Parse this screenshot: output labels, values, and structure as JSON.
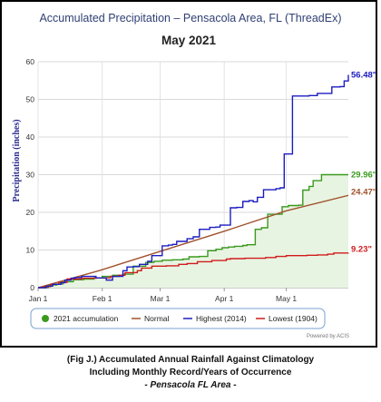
{
  "caption": {
    "line1": "(Fig J.) Accumulated Annual Rainfall Against  Climatology",
    "line2": "Including Monthly Record/Years of Occurrence",
    "line3": "- Pensacola FL Area -"
  },
  "chart_data": {
    "type": "line",
    "title": "Accumulated Precipitation – Pensacola Area, FL (ThreadEx)",
    "subtitle": "May 2021",
    "ylabel": "Precipitation (inches)",
    "xlabel": "",
    "credit": "Powered by ACIS",
    "ylim": [
      0,
      60
    ],
    "yticks": [
      0,
      10,
      20,
      30,
      40,
      50,
      60
    ],
    "xlim": [
      0,
      150
    ],
    "xticks": [
      {
        "day": 0,
        "label": "Jan 1"
      },
      {
        "day": 31,
        "label": "Feb 1"
      },
      {
        "day": 59,
        "label": "Mar 1"
      },
      {
        "day": 90,
        "label": "Apr 1"
      },
      {
        "day": 120,
        "label": "May 1"
      }
    ],
    "grid": true,
    "legend_position": "bottom",
    "series": [
      {
        "name": "2021 accumulation",
        "color": "#3a9a1f",
        "fill": "#e8f4e2",
        "style": "step-area",
        "marker": "circle",
        "x": [
          0,
          5,
          9,
          12,
          17,
          22,
          27,
          31,
          36,
          41,
          46,
          52,
          56,
          60,
          65,
          70,
          73,
          78,
          82,
          86,
          89,
          92,
          95,
          99,
          101,
          105,
          108,
          111,
          118,
          121,
          126,
          128,
          131,
          133,
          137,
          150
        ],
        "y": [
          0,
          0.7,
          1.0,
          1.6,
          2.1,
          2.3,
          2.6,
          3.0,
          3.3,
          3.6,
          5.7,
          6.7,
          7.0,
          7.3,
          7.4,
          7.6,
          8.2,
          8.3,
          9.8,
          10.2,
          10.6,
          10.8,
          11.0,
          11.2,
          11.4,
          15.5,
          15.9,
          19.5,
          21.5,
          21.8,
          21.9,
          25.9,
          26.9,
          28.4,
          30.0,
          30.0
        ],
        "end_label": "29.96\""
      },
      {
        "name": "Normal",
        "color": "#a0522d",
        "style": "line",
        "marker": "line",
        "x": [
          0,
          30,
          60,
          90,
          120,
          150
        ],
        "y": [
          0,
          4.6,
          9.8,
          15.0,
          20.4,
          24.5
        ],
        "end_label": "24.47\""
      },
      {
        "name": "Highest (2014)",
        "color": "#1c1cc0",
        "style": "step",
        "marker": "line",
        "x": [
          0,
          4,
          7,
          11,
          13,
          16,
          18,
          21,
          23,
          28,
          33,
          36,
          41,
          43,
          46,
          49,
          53,
          55,
          60,
          63,
          65,
          67,
          72,
          75,
          78,
          83,
          86,
          88,
          93,
          96,
          99,
          102,
          104,
          106,
          109,
          115,
          117,
          119,
          123,
          131,
          135,
          142,
          146,
          148,
          150
        ],
        "y": [
          0,
          0.4,
          0.9,
          1.3,
          2.0,
          2.5,
          2.7,
          3.0,
          3.0,
          2.6,
          2.0,
          3.0,
          4.5,
          5.5,
          5.6,
          6.2,
          7.0,
          8.5,
          11.1,
          11.3,
          11.5,
          12.3,
          13.0,
          13.5,
          15.5,
          16.0,
          16.1,
          16.6,
          21.2,
          21.3,
          22.9,
          23.1,
          22.8,
          24.0,
          26.0,
          26.3,
          26.5,
          35.5,
          50.9,
          51.0,
          51.6,
          53.3,
          53.4,
          54.9,
          56.5
        ],
        "end_label": "56.48\""
      },
      {
        "name": "Lowest (1904)",
        "color": "#d01c1c",
        "style": "step",
        "marker": "line",
        "x": [
          0,
          3,
          6,
          10,
          14,
          21,
          28,
          35,
          39,
          42,
          48,
          50,
          55,
          62,
          68,
          72,
          77,
          84,
          91,
          93,
          100,
          110,
          115,
          120,
          130,
          135,
          140,
          143,
          150
        ],
        "y": [
          0,
          0.3,
          0.9,
          1.4,
          2.3,
          2.5,
          2.6,
          3.0,
          3.3,
          4.0,
          4.5,
          5.2,
          5.7,
          5.8,
          6.2,
          6.4,
          6.9,
          7.2,
          7.6,
          7.7,
          7.8,
          8.0,
          8.3,
          8.5,
          8.6,
          8.7,
          8.9,
          9.2,
          9.23
        ],
        "end_label": "9.23\""
      }
    ]
  }
}
